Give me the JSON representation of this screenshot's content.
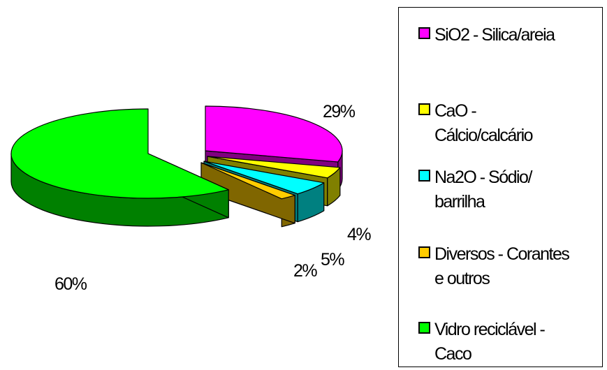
{
  "chart_data": {
    "type": "pie",
    "title": "",
    "three_d": true,
    "exploded": true,
    "legend_position": "right",
    "slices": [
      {
        "label": "SiO2 - Silica/areia",
        "value": 29,
        "value_label": "29%",
        "top_color": "#ff00ff",
        "side_color": "#800080"
      },
      {
        "label": "CaO - Cálcio/calcário",
        "value": 4,
        "value_label": "4%",
        "top_color": "#ffff00",
        "side_color": "#808000"
      },
      {
        "label": "Na2O - Sódio/ barrilha",
        "value": 5,
        "value_label": "5%",
        "top_color": "#00ffff",
        "side_color": "#008080"
      },
      {
        "label": "Diversos - Corantes e outros",
        "value": 2,
        "value_label": "2%",
        "top_color": "#ffcc00",
        "side_color": "#806600"
      },
      {
        "label": "Vidro reciclável - Caco",
        "value": 60,
        "value_label": "60%",
        "top_color": "#00ff00",
        "side_color": "#008000"
      }
    ]
  },
  "legend": {
    "items": [
      {
        "lines": [
          "SiO2 - Silica/areia"
        ],
        "color": "#ff00ff"
      },
      {
        "lines": [
          "CaO -",
          "Cálcio/calcário"
        ],
        "color": "#ffff00"
      },
      {
        "lines": [
          "Na2O - Sódio/",
          "barrilha"
        ],
        "color": "#00ffff"
      },
      {
        "lines": [
          "Diversos - Corantes",
          "e outros"
        ],
        "color": "#ffcc00"
      },
      {
        "lines": [
          "Vidro reciclável -",
          "Caco"
        ],
        "color": "#00ff00"
      }
    ]
  }
}
